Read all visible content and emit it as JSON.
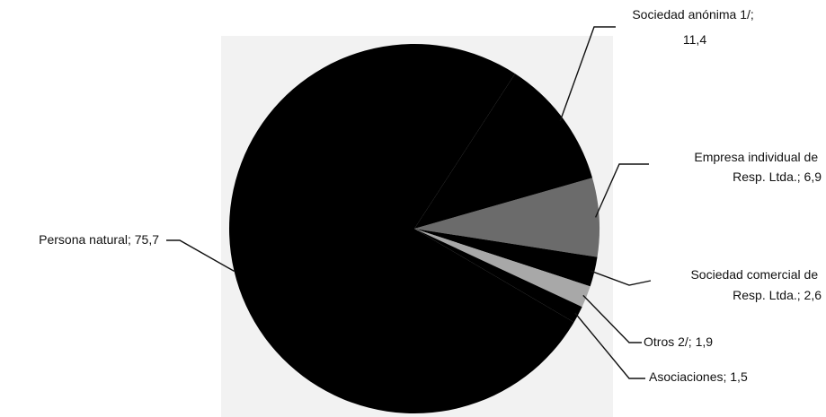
{
  "chart_data": {
    "type": "pie",
    "title": "",
    "slices": [
      {
        "label": "Persona natural",
        "value": 75.7,
        "value_text": "75,7",
        "color": "#000000"
      },
      {
        "label": "Sociedad anónima 1/",
        "value": 11.4,
        "value_text": "11,4",
        "color": "#000000"
      },
      {
        "label": "Empresa individual de Resp. Ltda.",
        "value": 6.9,
        "value_text": "6,9",
        "color": "#6b6b6b"
      },
      {
        "label": "Sociedad comercial de Resp. Ltda.",
        "value": 2.6,
        "value_text": "2,6",
        "color": "#000000"
      },
      {
        "label": "Otros 2/",
        "value": 1.9,
        "value_text": "1,9",
        "color": "#a8a8a8"
      },
      {
        "label": "Asociaciones",
        "value": 1.5,
        "value_text": "1,5",
        "color": "#000000"
      }
    ],
    "data_labels": [
      {
        "lines": [
          "Sociedad anónima 1/;",
          "11,4"
        ]
      },
      {
        "lines": [
          "Empresa individual de",
          "Resp. Ltda.; 6,9"
        ]
      },
      {
        "lines": [
          "Persona natural; 75,7"
        ]
      },
      {
        "lines": [
          "Sociedad comercial de",
          "Resp. Ltda.; 2,6"
        ]
      },
      {
        "lines": [
          "Otros 2/; 1,9"
        ]
      },
      {
        "lines": [
          "Asociaciones; 1,5"
        ]
      }
    ]
  }
}
